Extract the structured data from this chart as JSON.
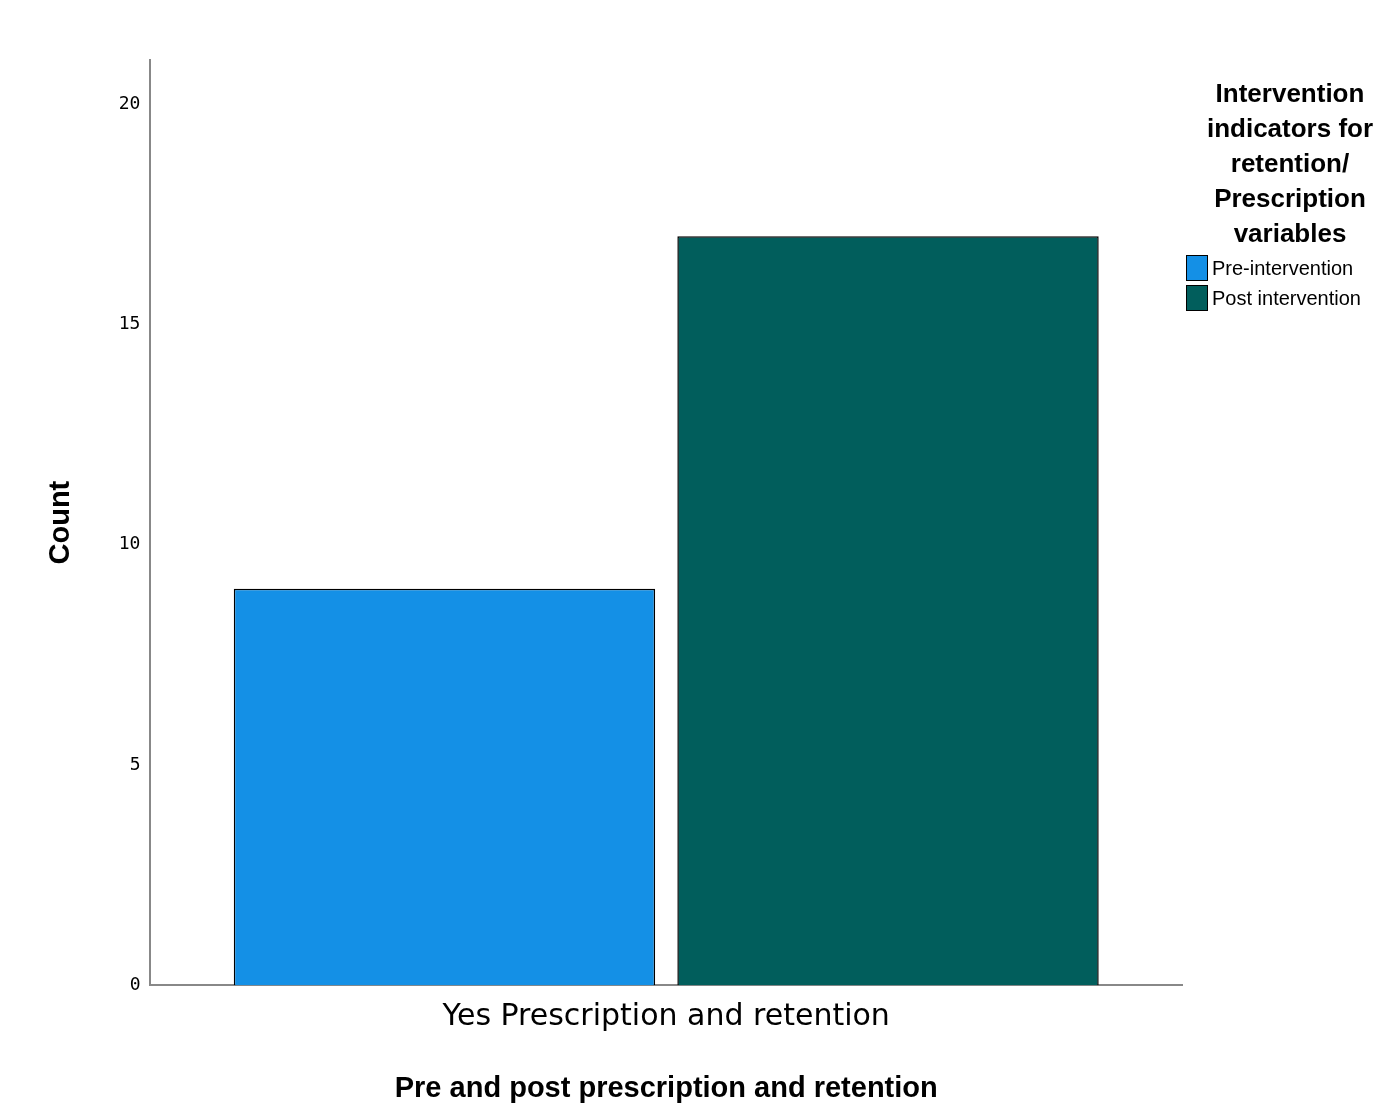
{
  "chart_data": {
    "type": "bar",
    "xlabel": "Pre and post prescription and retention",
    "ylabel": "Count",
    "legend_title": "Intervention indicators for retention/ Prescription variables",
    "categories": [
      "Yes Prescription and retention"
    ],
    "series": [
      {
        "name": "Pre-intervention",
        "color": "#1490e6",
        "values": [
          9
        ]
      },
      {
        "name": "Post intervention",
        "color": "#015e5c",
        "values": [
          17
        ]
      }
    ],
    "ylim": [
      0,
      21
    ],
    "yticks": [
      0,
      5,
      10,
      15,
      20
    ],
    "grid": false,
    "legend": "top right"
  }
}
